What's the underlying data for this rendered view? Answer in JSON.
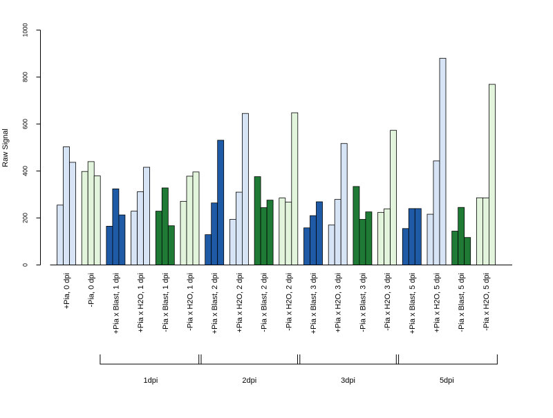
{
  "chart_data": {
    "type": "bar",
    "ylabel": "Raw Signal",
    "ylim": [
      0,
      1000
    ],
    "yticks": [
      0,
      200,
      400,
      600,
      800,
      1000
    ],
    "colors": {
      "light_blue": "#d6e4f5",
      "dark_blue": "#1f5aa6",
      "light_green": "#e2f5dc",
      "dark_green": "#1e7a34",
      "outline": "#000000"
    },
    "categories": [
      {
        "label": "+Pia, 0 dpi",
        "values": [
          255,
          503,
          437
        ],
        "color": "light_blue"
      },
      {
        "label": "-Pia, 0 dpi",
        "values": [
          398,
          440,
          379
        ],
        "color": "light_green"
      },
      {
        "label": "+Pia x Blast, 1 dpi",
        "values": [
          165,
          324,
          213
        ],
        "color": "dark_blue"
      },
      {
        "label": "+Pia x H2O, 1 dpi",
        "values": [
          229,
          312,
          416
        ],
        "color": "light_blue"
      },
      {
        "label": "-Pia x Blast, 1 dpi",
        "values": [
          229,
          328,
          167
        ],
        "color": "dark_green"
      },
      {
        "label": "-Pia x H2O, 1 dpi",
        "values": [
          271,
          378,
          396
        ],
        "color": "light_green"
      },
      {
        "label": "+Pia x Blast, 2 dpi",
        "values": [
          129,
          264,
          531
        ],
        "color": "dark_blue"
      },
      {
        "label": "+Pia x H2O, 2 dpi",
        "values": [
          194,
          310,
          645
        ],
        "color": "light_blue"
      },
      {
        "label": "-Pia x Blast, 2 dpi",
        "values": [
          376,
          244,
          276
        ],
        "color": "dark_green"
      },
      {
        "label": "-Pia x H2O, 2 dpi",
        "values": [
          285,
          268,
          648
        ],
        "color": "light_green"
      },
      {
        "label": "+Pia x Blast, 3 dpi",
        "values": [
          158,
          210,
          269
        ],
        "color": "dark_blue"
      },
      {
        "label": "+Pia x H2O, 3 dpi",
        "values": [
          170,
          279,
          517
        ],
        "color": "light_blue"
      },
      {
        "label": "-Pia x Blast, 3 dpi",
        "values": [
          334,
          194,
          226
        ],
        "color": "dark_green"
      },
      {
        "label": "-Pia x H2O, 3 dpi",
        "values": [
          224,
          239,
          573
        ],
        "color": "light_green"
      },
      {
        "label": "+Pia x Blast, 5 dpi",
        "values": [
          155,
          240,
          240
        ],
        "color": "dark_blue"
      },
      {
        "label": "+Pia x H2O, 5 dpi",
        "values": [
          216,
          443,
          880
        ],
        "color": "light_blue"
      },
      {
        "label": "-Pia x Blast, 5 dpi",
        "values": [
          144,
          245,
          117
        ],
        "color": "dark_green"
      },
      {
        "label": "-Pia x H2O, 5 dpi",
        "values": [
          286,
          285,
          769
        ],
        "color": "light_green"
      }
    ],
    "groups": [
      {
        "label": "1dpi",
        "start": 2,
        "end": 5
      },
      {
        "label": "2dpi",
        "start": 6,
        "end": 9
      },
      {
        "label": "3dpi",
        "start": 10,
        "end": 13
      },
      {
        "label": "5dpi",
        "start": 14,
        "end": 17
      }
    ]
  }
}
